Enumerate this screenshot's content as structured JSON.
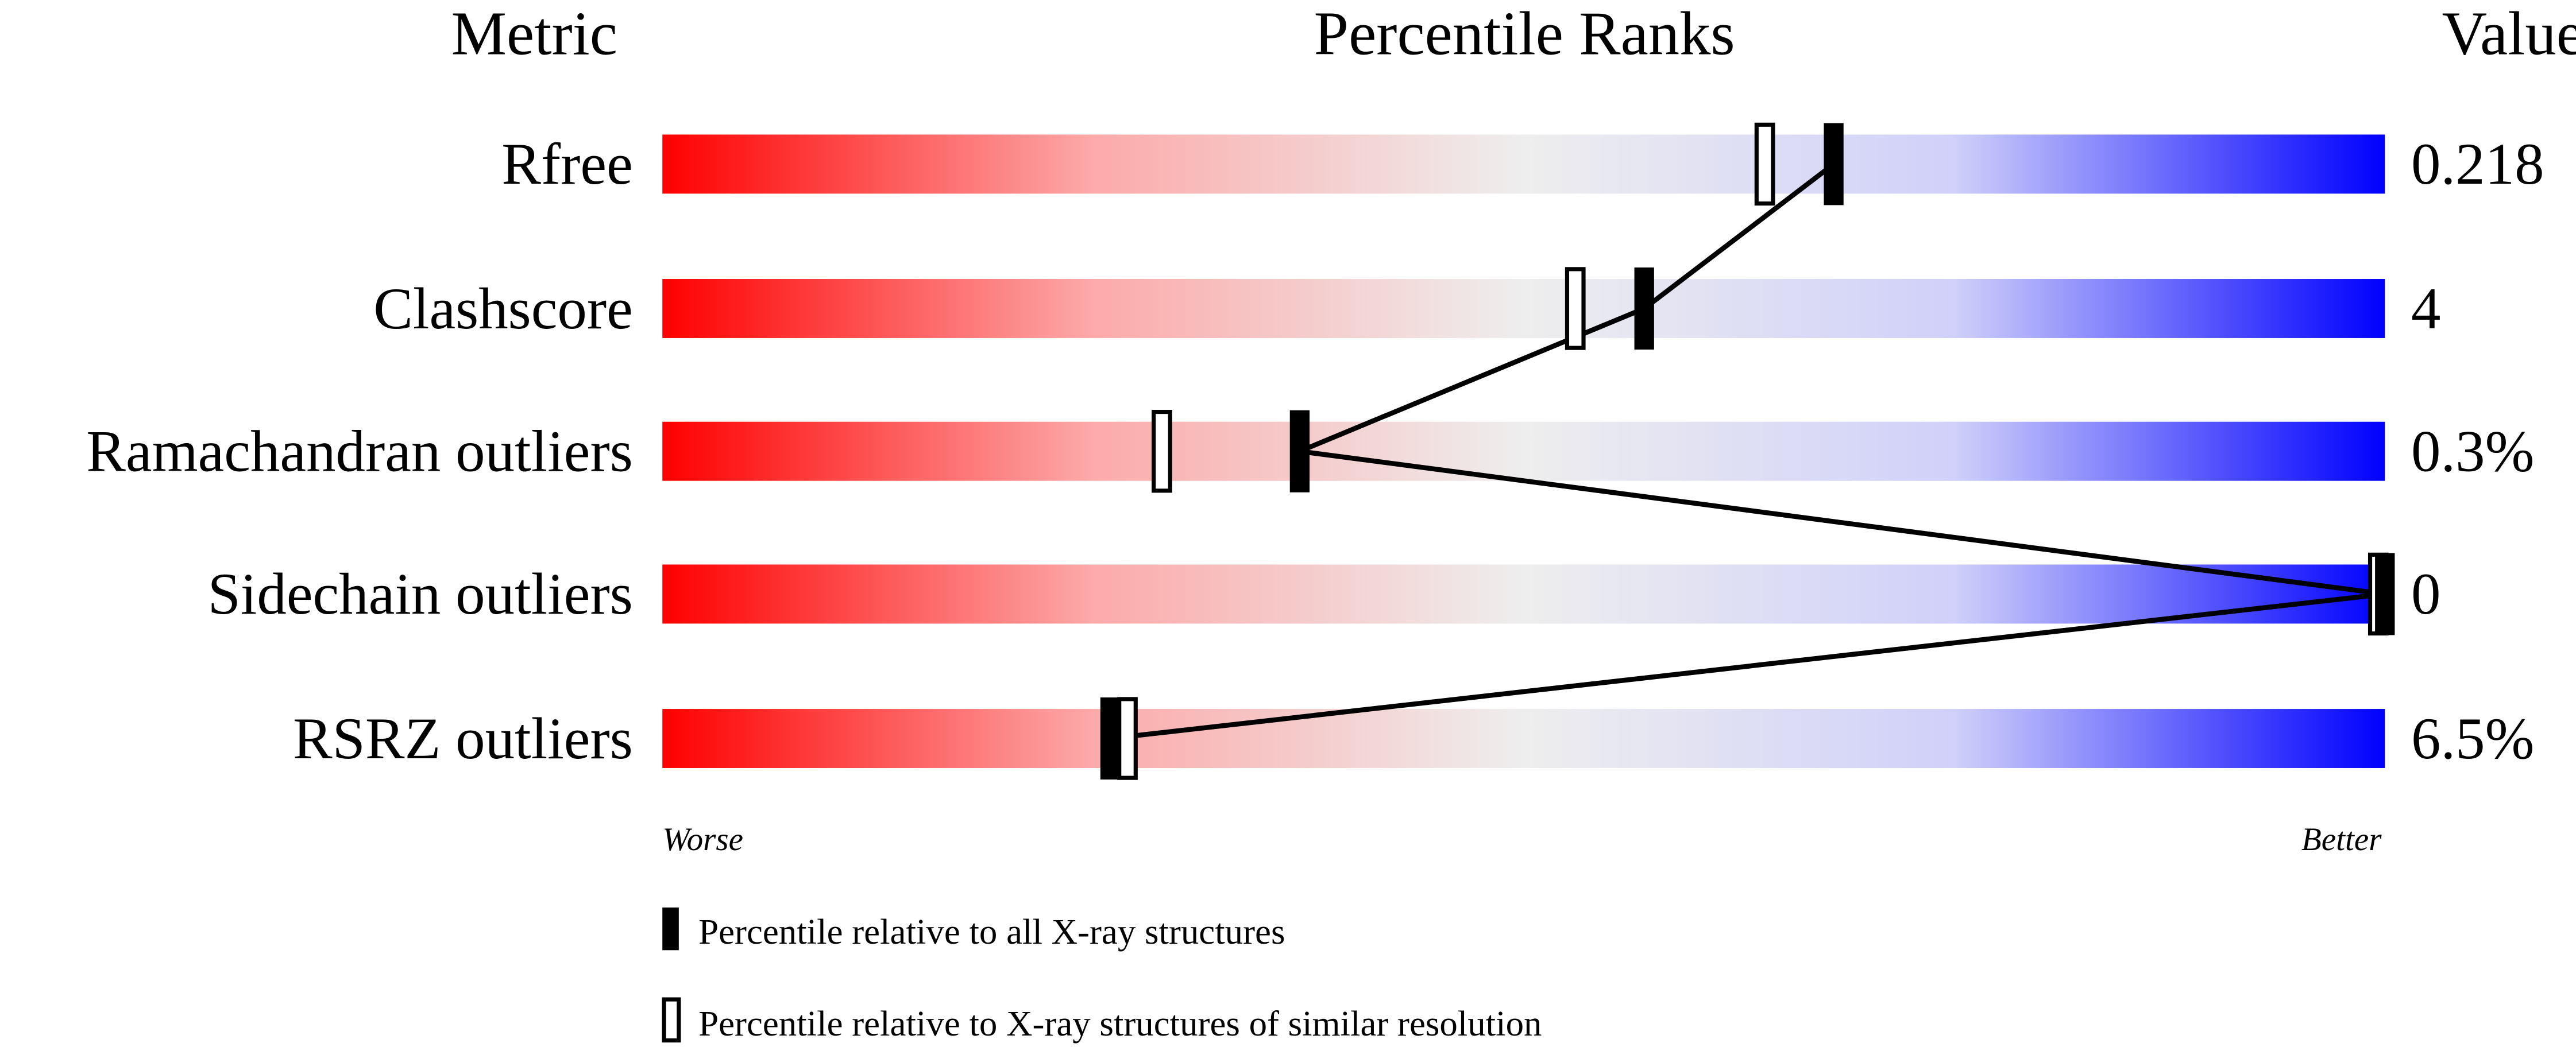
{
  "chart_data": {
    "type": "percentile-rank",
    "headers": {
      "metric": "Metric",
      "ranks": "Percentile Ranks",
      "value": "Value"
    },
    "xlim": [
      0,
      100
    ],
    "axis_labels": {
      "left": "Worse",
      "right": "Better"
    },
    "gradient_colors": [
      "#ff0000",
      "#eeeeee",
      "#0000ff"
    ],
    "metrics": [
      {
        "name": "Rfree",
        "value": "0.218",
        "percentile_all": 68,
        "percentile_similar": 64
      },
      {
        "name": "Clashscore",
        "value": "4",
        "percentile_all": 57,
        "percentile_similar": 53
      },
      {
        "name": "Ramachandran outliers",
        "value": "0.3%",
        "percentile_all": 37,
        "percentile_similar": 29
      },
      {
        "name": "Sidechain outliers",
        "value": "0",
        "percentile_all": 100,
        "percentile_similar": 100
      },
      {
        "name": "RSRZ outliers",
        "value": "6.5%",
        "percentile_all": 26,
        "percentile_similar": 27
      }
    ],
    "legend": [
      {
        "marker": "filled",
        "label": "Percentile relative to all X-ray structures"
      },
      {
        "marker": "open",
        "label": "Percentile relative to X-ray structures of similar resolution"
      }
    ]
  }
}
